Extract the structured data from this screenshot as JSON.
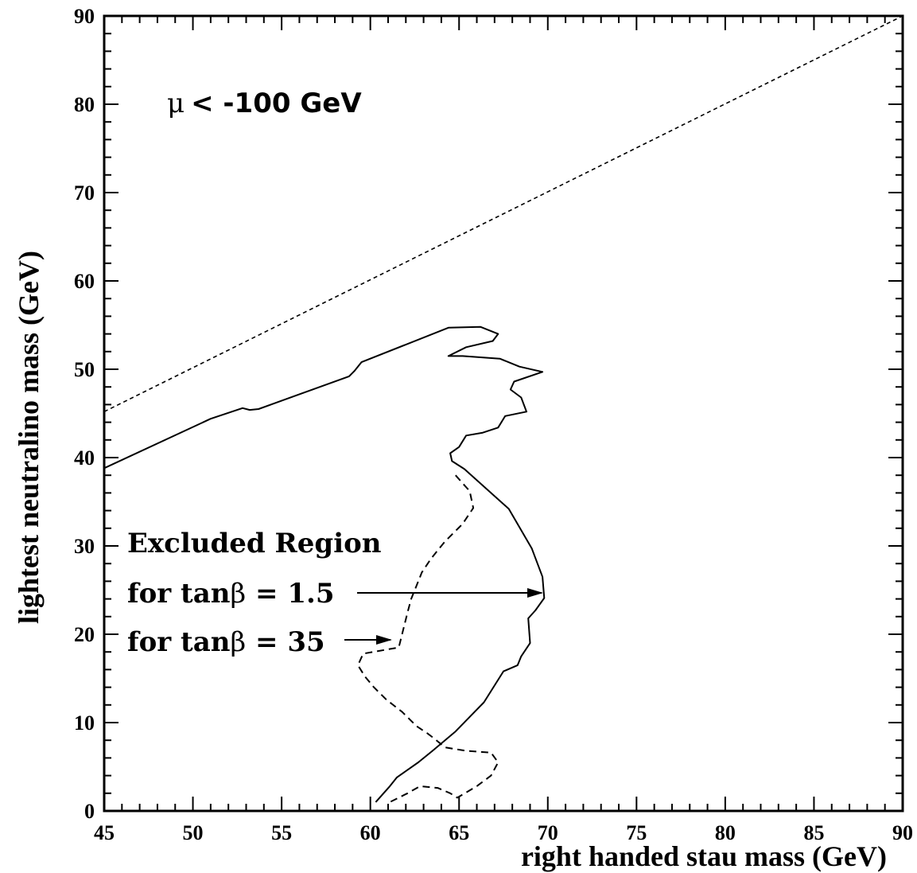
{
  "chart_data": {
    "type": "line",
    "xlabel": "right handed stau mass (GeV)",
    "ylabel": "lightest neutralino mass (GeV)",
    "xlim": [
      45,
      90
    ],
    "ylim": [
      0,
      90
    ],
    "xticks": [
      45,
      50,
      55,
      60,
      65,
      70,
      75,
      80,
      85,
      90
    ],
    "yticks": [
      0,
      10,
      20,
      30,
      40,
      50,
      60,
      70,
      80,
      90
    ],
    "grid": false,
    "annotations": {
      "condition": "< -100 GeV",
      "condition_symbol": "μ",
      "region_label": "Excluded Region",
      "label_tb15_prefix": "for tan",
      "label_tb15_symbol": "β",
      "label_tb15_suffix": " = 1.5",
      "label_tb35_prefix": "for tan",
      "label_tb35_symbol": "β",
      "label_tb35_suffix": " = 35"
    },
    "series": [
      {
        "style": "dotted",
        "x": [
          45,
          90
        ],
        "y": [
          45.2,
          90
        ]
      },
      {
        "style": "solid",
        "x": [
          45,
          51,
          52.8,
          53.2,
          53.7,
          58.8,
          59.1,
          59.5,
          64.4,
          66.2,
          67.2,
          66.9,
          65.4,
          64.4,
          65.2,
          67.3,
          68.4,
          69.7,
          68.1,
          67.9,
          68.5,
          68.8,
          67.6,
          67.2,
          66.3,
          65.4,
          65.0,
          64.5,
          64.6,
          65.3,
          67.8,
          69.1,
          69.7,
          69.8,
          69.3,
          68.9,
          69.0,
          68.5,
          68.3,
          67.5,
          66.4,
          64.8,
          63.5,
          62.7,
          61.5,
          61.1,
          60.3
        ],
        "y": [
          38.8,
          44.4,
          45.6,
          45.4,
          45.5,
          49.2,
          49.8,
          50.8,
          54.7,
          54.8,
          54.0,
          53.2,
          52.5,
          51.5,
          51.5,
          51.2,
          50.3,
          49.7,
          48.6,
          47.7,
          46.8,
          45.2,
          44.7,
          43.4,
          42.8,
          42.5,
          41.2,
          40.5,
          39.6,
          38.7,
          34.2,
          29.7,
          26.5,
          24.1,
          22.7,
          21.8,
          19.0,
          17.5,
          16.5,
          15.8,
          12.3,
          9.0,
          6.8,
          5.5,
          3.8,
          2.8,
          1.0
        ]
      },
      {
        "style": "dashed",
        "x": [
          64.8,
          65.6,
          65.8,
          65.2,
          64.2,
          63.8,
          63.4,
          62.9,
          62.6,
          62.3,
          62.1,
          61.6,
          59.6,
          59.3,
          59.7,
          60.2,
          60.9,
          61.8,
          62.6,
          63.2,
          63.6,
          64.2,
          65.4,
          66.8,
          67.2,
          66.8,
          66.0,
          64.9,
          64.5,
          63.8,
          62.8,
          62.1,
          61.1
        ],
        "y": [
          38.0,
          36.2,
          34.3,
          32.5,
          30.5,
          29.5,
          28.5,
          27.0,
          25.5,
          24.0,
          22.5,
          18.5,
          17.8,
          16.5,
          15.2,
          14.0,
          12.6,
          11.2,
          9.6,
          8.8,
          8.2,
          7.2,
          6.8,
          6.6,
          5.5,
          4.0,
          2.8,
          1.5,
          2.0,
          2.6,
          2.8,
          2.0,
          1.0
        ]
      }
    ]
  }
}
